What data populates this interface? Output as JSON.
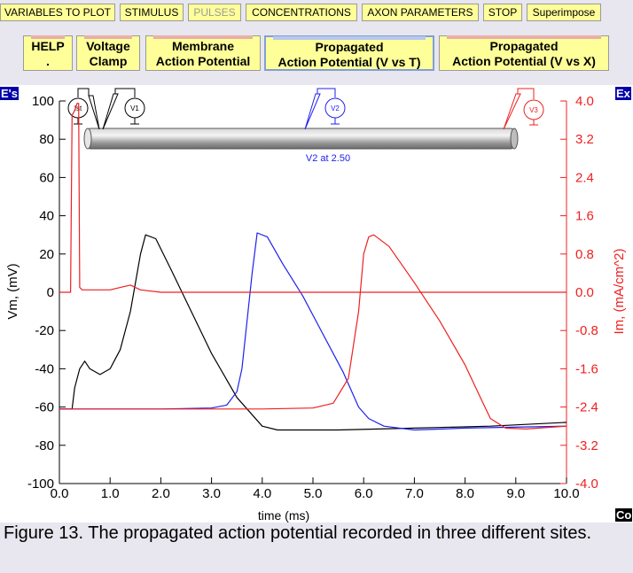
{
  "menu": [
    {
      "id": "variables",
      "label": "VARIABLES TO PLOT",
      "enabled": true
    },
    {
      "id": "stimulus",
      "label": "STIMULUS",
      "enabled": true
    },
    {
      "id": "pulses",
      "label": "PULSES",
      "enabled": false
    },
    {
      "id": "concentrations",
      "label": "CONCENTRATIONS",
      "enabled": true
    },
    {
      "id": "axon",
      "label": "AXON PARAMETERS",
      "enabled": true
    },
    {
      "id": "stop",
      "label": "STOP",
      "enabled": true
    },
    {
      "id": "superimpose",
      "label": "Superimpose",
      "enabled": true
    }
  ],
  "tabs": [
    {
      "id": "help",
      "line1": "HELP",
      "line2": ".",
      "active": false
    },
    {
      "id": "voltage-clamp",
      "line1": "Voltage",
      "line2": "Clamp",
      "active": false
    },
    {
      "id": "membrane-ap",
      "line1": "Membrane",
      "line2": "Action Potential",
      "active": false
    },
    {
      "id": "propagated-vt",
      "line1": "Propagated",
      "line2": "Action Potential (V vs T)",
      "active": true
    },
    {
      "id": "propagated-vx",
      "line1": "Propagated",
      "line2": "Action Potential (V vs X)",
      "active": false
    }
  ],
  "side_tabs": {
    "left": "E's",
    "right_top": "Ex",
    "right_bottom": "Co"
  },
  "axon": {
    "electrodes": {
      "stim": "Ist",
      "v1": "V1",
      "v2": "V2",
      "v3": "V3"
    },
    "v2_position_label": "V2 at 2.50",
    "colors": {
      "v1": "#000000",
      "v2": "#2020ee",
      "v3": "#ee2020",
      "stim": "#000000"
    }
  },
  "chart_data": {
    "type": "line",
    "xlabel": "time (ms)",
    "ylabel_left": "Vm, (mV)",
    "ylabel_right": "Im, (mA/cm^2)",
    "xlim": [
      0,
      10
    ],
    "ylim_left": [
      -100,
      100
    ],
    "ylim_right": [
      -4.0,
      4.0
    ],
    "x_ticks": [
      "0.0",
      "1.0",
      "2.0",
      "3.0",
      "4.0",
      "5.0",
      "6.0",
      "7.0",
      "8.0",
      "9.0",
      "10.0"
    ],
    "y_ticks_left": [
      "100",
      "80",
      "60",
      "40",
      "20",
      "0",
      "-20",
      "-40",
      "-60",
      "-80",
      "-100"
    ],
    "y_ticks_right": [
      "4.0",
      "3.2",
      "2.4",
      "1.6",
      "0.8",
      "0.0",
      "-0.8",
      "-1.6",
      "-2.4",
      "-3.2",
      "-4.0"
    ],
    "grid": false,
    "series": [
      {
        "id": "v1",
        "axis": "left",
        "color": "#000000",
        "x": [
          0.0,
          0.25,
          0.3,
          0.4,
          0.5,
          0.6,
          0.8,
          1.0,
          1.2,
          1.4,
          1.6,
          1.7,
          1.9,
          2.2,
          2.6,
          3.0,
          3.5,
          4.0,
          4.3,
          4.7,
          5.5,
          7.0,
          8.5,
          10.0
        ],
        "y": [
          -61,
          -61,
          -50,
          -40,
          -36,
          -40,
          -43,
          -40,
          -30,
          -10,
          20,
          30,
          28,
          12,
          -10,
          -32,
          -55,
          -70,
          -72,
          -72,
          -72,
          -71,
          -70,
          -68
        ]
      },
      {
        "id": "v2",
        "axis": "left",
        "color": "#2020ee",
        "x": [
          0.0,
          2.0,
          3.0,
          3.3,
          3.5,
          3.6,
          3.8,
          3.9,
          4.1,
          4.4,
          4.8,
          5.2,
          5.6,
          5.9,
          6.1,
          6.4,
          7.0,
          8.0,
          10.0
        ],
        "y": [
          -61,
          -61,
          -60.5,
          -59,
          -52,
          -40,
          10,
          31,
          29,
          15,
          -2,
          -22,
          -42,
          -60,
          -66,
          -70,
          -72,
          -71,
          -70
        ]
      },
      {
        "id": "v3",
        "axis": "left",
        "color": "#ee2020",
        "x": [
          0.0,
          4.0,
          5.0,
          5.4,
          5.7,
          5.9,
          6.0,
          6.1,
          6.2,
          6.5,
          7.0,
          7.5,
          8.0,
          8.3,
          8.5,
          8.8,
          9.2,
          10.0
        ],
        "y": [
          -61,
          -61,
          -60.5,
          -58,
          -45,
          -10,
          20,
          29,
          30,
          24,
          5,
          -15,
          -38,
          -55,
          -66,
          -71,
          -71.5,
          -70
        ]
      },
      {
        "id": "im",
        "axis": "right",
        "color": "#ee2020",
        "x": [
          0.0,
          0.22,
          0.25,
          0.3,
          0.35,
          0.38,
          0.4,
          0.45,
          0.6,
          1.0,
          1.2,
          1.4,
          1.6,
          2.0,
          3.0,
          5.0,
          7.0,
          10.0
        ],
        "y": [
          0.0,
          0.0,
          3.7,
          3.8,
          3.95,
          3.95,
          0.1,
          0.05,
          0.05,
          0.05,
          0.1,
          0.15,
          0.05,
          0.0,
          0.0,
          0.0,
          0.0,
          0.0
        ]
      }
    ]
  },
  "caption": "Figure 13. The propagated action potential recorded in three different sites."
}
